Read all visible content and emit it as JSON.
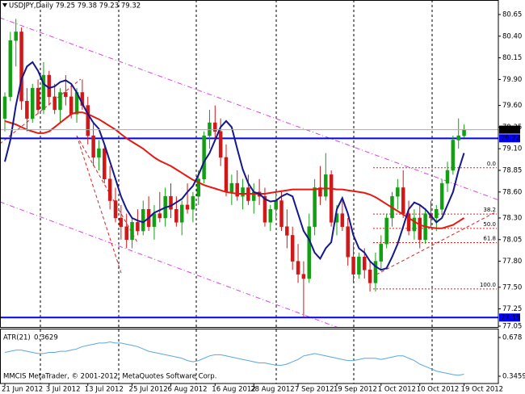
{
  "chart_data": {
    "type": "candlestick",
    "title": "USDJPY,Daily  79.25 79.38 79.23 79.32",
    "footer": "MMCIS MetaTrader, © 2001-2012, MetaQuotes Software Corp.",
    "categories": [
      "21 Jun 2012",
      null,
      null,
      null,
      null,
      null,
      null,
      null,
      "3 Jul 2012",
      null,
      null,
      null,
      null,
      null,
      null,
      "13 Jul 2012",
      null,
      null,
      null,
      null,
      null,
      null,
      null,
      "25 Jul 2012",
      null,
      null,
      null,
      null,
      null,
      null,
      "6 Aug 2012",
      null,
      null,
      null,
      null,
      null,
      null,
      null,
      "16 Aug 2012",
      null,
      null,
      null,
      null,
      null,
      null,
      "28 Aug 2012",
      null,
      null,
      null,
      null,
      null,
      null,
      null,
      "7 Sep 2012",
      null,
      null,
      null,
      null,
      null,
      null,
      "19 Sep 2012",
      null,
      null,
      null,
      null,
      null,
      null,
      null,
      "1 Oct 2012",
      null,
      null,
      null,
      null,
      null,
      null,
      "10 Oct 2012",
      null,
      null,
      null,
      null,
      null,
      null,
      null,
      "19 Oct 2012"
    ],
    "ohlc": [
      [
        79.45,
        79.75,
        79.3,
        79.7
      ],
      [
        79.7,
        80.45,
        79.65,
        80.35
      ],
      [
        80.35,
        80.6,
        80.05,
        80.45
      ],
      [
        80.45,
        80.5,
        79.55,
        79.65
      ],
      [
        79.65,
        79.8,
        79.3,
        79.45
      ],
      [
        79.45,
        79.85,
        79.4,
        79.8
      ],
      [
        79.8,
        79.9,
        79.5,
        79.55
      ],
      [
        79.55,
        80.1,
        79.5,
        79.95
      ],
      [
        79.95,
        80.0,
        79.6,
        79.7
      ],
      [
        79.7,
        79.85,
        79.5,
        79.55
      ],
      [
        79.55,
        79.8,
        79.4,
        79.75
      ],
      [
        79.75,
        79.95,
        79.6,
        79.7
      ],
      [
        79.7,
        79.85,
        79.45,
        79.5
      ],
      [
        79.5,
        79.8,
        79.4,
        79.75
      ],
      [
        79.75,
        79.9,
        79.55,
        79.6
      ],
      [
        79.6,
        79.7,
        79.15,
        79.25
      ],
      [
        79.25,
        79.4,
        78.9,
        79.0
      ],
      [
        79.0,
        79.2,
        78.85,
        79.1
      ],
      [
        79.1,
        79.15,
        78.7,
        78.75
      ],
      [
        78.75,
        78.9,
        78.4,
        78.5
      ],
      [
        78.5,
        78.65,
        78.25,
        78.3
      ],
      [
        78.3,
        78.45,
        78.05,
        78.2
      ],
      [
        78.2,
        78.35,
        77.95,
        78.05
      ],
      [
        78.05,
        78.3,
        77.95,
        78.25
      ],
      [
        78.25,
        78.4,
        78.1,
        78.15
      ],
      [
        78.15,
        78.5,
        78.1,
        78.4
      ],
      [
        78.4,
        78.55,
        78.15,
        78.2
      ],
      [
        78.2,
        78.45,
        78.05,
        78.35
      ],
      [
        78.35,
        78.6,
        78.25,
        78.3
      ],
      [
        78.3,
        78.65,
        78.2,
        78.55
      ],
      [
        78.55,
        78.7,
        78.3,
        78.4
      ],
      [
        78.4,
        78.55,
        78.2,
        78.25
      ],
      [
        78.25,
        78.5,
        78.1,
        78.45
      ],
      [
        78.45,
        78.7,
        78.35,
        78.4
      ],
      [
        78.4,
        78.6,
        78.25,
        78.55
      ],
      [
        78.55,
        78.85,
        78.45,
        78.75
      ],
      [
        78.75,
        79.3,
        78.7,
        79.25
      ],
      [
        79.25,
        79.55,
        79.1,
        79.4
      ],
      [
        79.4,
        79.6,
        79.2,
        79.3
      ],
      [
        79.3,
        79.45,
        78.9,
        79.0
      ],
      [
        79.0,
        79.15,
        78.55,
        78.6
      ],
      [
        78.6,
        78.8,
        78.45,
        78.7
      ],
      [
        78.7,
        78.85,
        78.5,
        78.55
      ],
      [
        78.55,
        78.75,
        78.4,
        78.65
      ],
      [
        78.65,
        78.8,
        78.45,
        78.5
      ],
      [
        78.5,
        78.7,
        78.35,
        78.6
      ],
      [
        78.6,
        78.75,
        78.45,
        78.55
      ],
      [
        78.55,
        78.65,
        78.2,
        78.25
      ],
      [
        78.25,
        78.45,
        78.15,
        78.4
      ],
      [
        78.4,
        78.6,
        78.3,
        78.5
      ],
      [
        78.5,
        78.6,
        78.15,
        78.2
      ],
      [
        78.2,
        78.4,
        77.95,
        78.1
      ],
      [
        78.1,
        78.2,
        77.7,
        77.8
      ],
      [
        77.8,
        78.0,
        77.55,
        77.65
      ],
      [
        77.65,
        77.8,
        77.15,
        77.6
      ],
      [
        77.6,
        78.35,
        77.55,
        78.2
      ],
      [
        78.2,
        78.75,
        78.1,
        78.65
      ],
      [
        78.65,
        78.9,
        78.45,
        78.55
      ],
      [
        78.55,
        79.05,
        78.5,
        78.8
      ],
      [
        78.8,
        78.85,
        78.2,
        78.25
      ],
      [
        78.25,
        78.45,
        78.1,
        78.35
      ],
      [
        78.35,
        78.5,
        78.15,
        78.2
      ],
      [
        78.2,
        78.3,
        77.75,
        77.85
      ],
      [
        77.85,
        78.0,
        77.55,
        77.65
      ],
      [
        77.65,
        77.9,
        77.6,
        77.85
      ],
      [
        77.85,
        77.95,
        77.6,
        77.7
      ],
      [
        77.7,
        77.8,
        77.45,
        77.55
      ],
      [
        77.55,
        77.9,
        77.45,
        77.8
      ],
      [
        77.8,
        78.1,
        77.7,
        78.0
      ],
      [
        78.0,
        78.35,
        77.95,
        78.3
      ],
      [
        78.3,
        78.6,
        78.2,
        78.55
      ],
      [
        78.55,
        78.75,
        78.4,
        78.65
      ],
      [
        78.65,
        78.85,
        78.3,
        78.35
      ],
      [
        78.35,
        78.5,
        78.1,
        78.15
      ],
      [
        78.15,
        78.4,
        78.05,
        78.3
      ],
      [
        78.3,
        78.45,
        77.95,
        78.05
      ],
      [
        78.05,
        78.4,
        78.0,
        78.35
      ],
      [
        78.35,
        78.5,
        78.2,
        78.3
      ],
      [
        78.3,
        78.45,
        78.15,
        78.4
      ],
      [
        78.4,
        78.75,
        78.35,
        78.7
      ],
      [
        78.7,
        78.95,
        78.6,
        78.85
      ],
      [
        78.85,
        79.25,
        78.8,
        79.2
      ],
      [
        79.2,
        79.45,
        79.1,
        79.25
      ],
      [
        79.25,
        79.38,
        79.23,
        79.32
      ]
    ],
    "up_color": "#12a012",
    "down_color": "#d01818",
    "ylim": [
      77.05,
      80.65
    ],
    "yticks": [
      80.65,
      {
        "value": 80.4,
        "label": "80.40"
      },
      80.15,
      {
        "value": 79.9,
        "label": "79.90"
      },
      {
        "value": 79.6,
        "label": "79.60"
      },
      79.35,
      {
        "value": 79.1,
        "label": "79.10"
      },
      78.85,
      {
        "value": 78.6,
        "label": "78.60"
      },
      {
        "value": 78.3,
        "label": "78.30"
      },
      78.05,
      {
        "value": 77.8,
        "label": "77.80"
      },
      {
        "value": 77.5,
        "label": "77.50"
      },
      77.25,
      77.05
    ],
    "overlays": [
      {
        "color": "#e81810",
        "values": [
          79.42,
          79.4,
          79.38,
          79.35,
          79.32,
          79.3,
          79.28,
          79.28,
          79.3,
          79.35,
          79.4,
          79.45,
          79.5,
          79.52,
          79.52,
          79.5,
          79.47,
          79.44,
          79.4,
          79.36,
          79.32,
          79.27,
          79.22,
          79.18,
          79.14,
          79.1,
          79.05,
          79.0,
          78.96,
          78.93,
          78.9,
          78.86,
          78.82,
          78.78,
          78.74,
          78.71,
          78.68,
          78.66,
          78.64,
          78.62,
          78.6,
          78.59,
          78.58,
          78.58,
          78.58,
          78.58,
          78.58,
          78.58,
          78.59,
          78.6,
          78.61,
          78.62,
          78.63,
          78.63,
          78.63,
          78.63,
          78.63,
          78.64,
          78.64,
          78.64,
          78.63,
          78.63,
          78.62,
          78.61,
          78.6,
          78.59,
          78.57,
          78.54,
          78.5,
          78.46,
          78.42,
          78.38,
          78.34,
          78.3,
          78.26,
          78.22,
          78.2,
          78.19,
          78.18,
          78.18,
          78.2,
          78.22,
          78.26,
          78.3
        ]
      },
      {
        "color": "#14188c",
        "values": [
          78.95,
          79.2,
          79.6,
          79.9,
          80.05,
          80.1,
          80.0,
          79.85,
          79.8,
          79.82,
          79.87,
          79.89,
          79.85,
          79.75,
          79.62,
          79.5,
          79.4,
          79.33,
          79.15,
          78.95,
          78.75,
          78.55,
          78.4,
          78.3,
          78.27,
          78.25,
          78.3,
          78.36,
          78.39,
          78.42,
          78.44,
          78.48,
          78.52,
          78.6,
          78.67,
          78.8,
          78.95,
          79.05,
          79.2,
          79.35,
          79.42,
          79.35,
          79.1,
          78.86,
          78.7,
          78.6,
          78.58,
          78.52,
          78.49,
          78.5,
          78.55,
          78.58,
          78.55,
          78.35,
          78.15,
          78.05,
          77.9,
          77.83,
          77.95,
          78.02,
          78.4,
          78.53,
          78.35,
          78.1,
          77.95,
          77.9,
          77.8,
          77.74,
          77.7,
          77.72,
          77.85,
          78.0,
          78.2,
          78.4,
          78.48,
          78.45,
          78.4,
          78.33,
          78.25,
          78.3,
          78.45,
          78.6,
          78.85,
          79.05
        ]
      }
    ],
    "hlines": [
      79.22,
      77.15
    ],
    "hline_color": "#0000ff",
    "fib": {
      "high": 78.88,
      "low": 77.48,
      "color": "#e02020",
      "levels": [
        {
          "value": 0,
          "label": "0.0"
        },
        38.2,
        {
          "value": 50,
          "label": "50.0"
        },
        61.8,
        {
          "value": 100,
          "label": "100.0"
        }
      ]
    },
    "atr": {
      "title": "ATR(21)",
      "color": "#5aa6e0",
      "ylim": [
        0.3459,
        0.678
      ],
      "yticks": [
        0.678,
        0.3459
      ],
      "values": [
        0.55,
        0.56,
        0.57,
        0.57,
        0.56,
        0.55,
        0.54,
        0.54,
        0.55,
        0.55,
        0.56,
        0.56,
        0.57,
        0.58,
        0.6,
        0.61,
        0.62,
        0.63,
        0.63,
        0.64,
        0.63,
        0.63,
        0.62,
        0.61,
        0.6,
        0.58,
        0.56,
        0.55,
        0.54,
        0.53,
        0.52,
        0.51,
        0.5,
        0.48,
        0.47,
        0.48,
        0.5,
        0.52,
        0.53,
        0.53,
        0.52,
        0.51,
        0.5,
        0.49,
        0.48,
        0.47,
        0.46,
        0.46,
        0.45,
        0.44,
        0.44,
        0.45,
        0.47,
        0.49,
        0.52,
        0.53,
        0.54,
        0.53,
        0.52,
        0.51,
        0.5,
        0.49,
        0.48,
        0.48,
        0.49,
        0.5,
        0.5,
        0.5,
        0.49,
        0.5,
        0.51,
        0.52,
        0.52,
        0.5,
        0.48,
        0.45,
        0.43,
        0.41,
        0.39,
        0.38,
        0.37,
        0.36,
        0.355,
        0.3629
      ]
    }
  }
}
